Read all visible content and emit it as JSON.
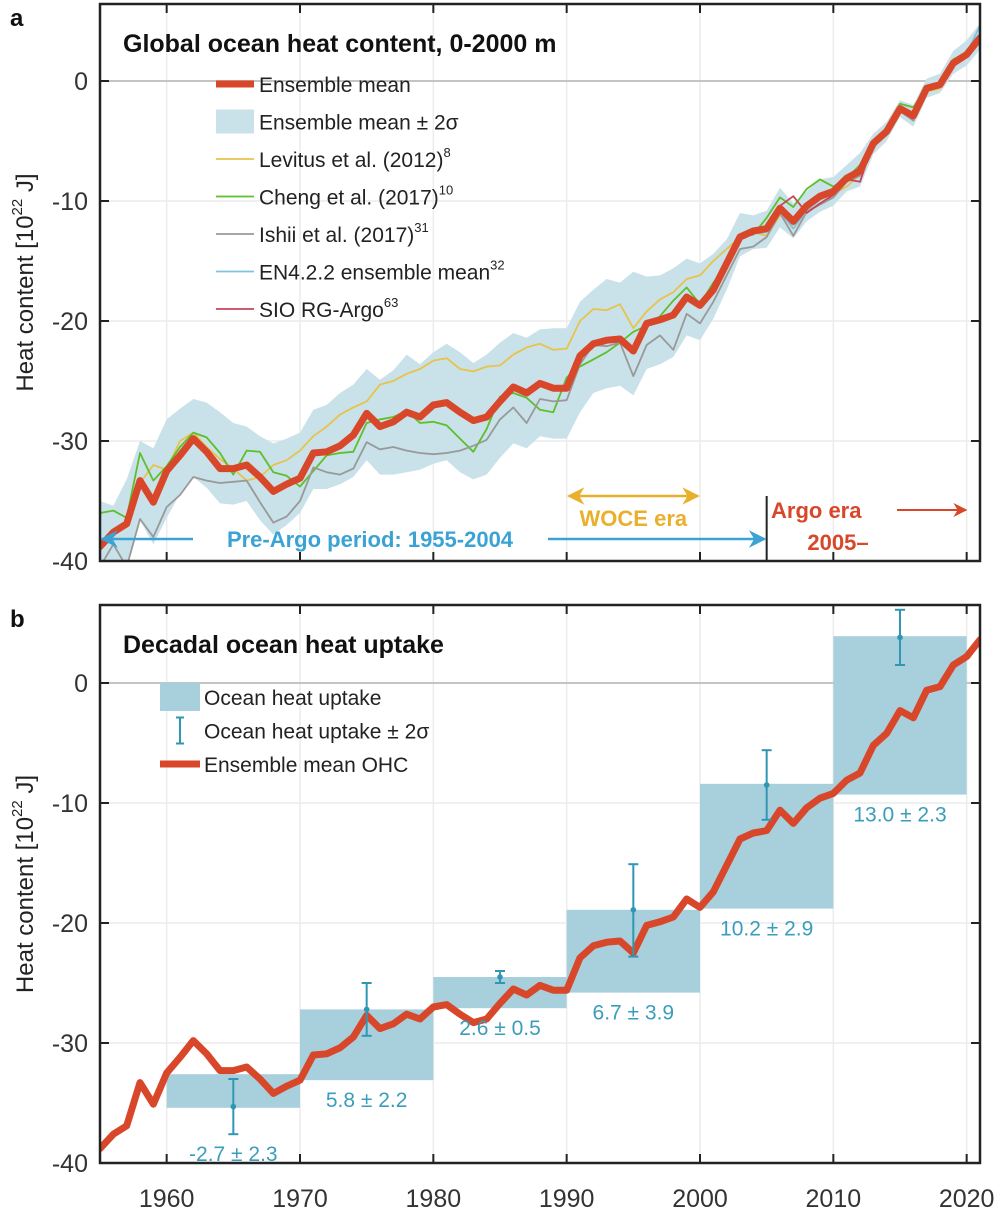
{
  "chart_data": [
    {
      "panel": "a",
      "type": "line",
      "title": "Global ocean heat content, 0-2000 m",
      "xlabel": "",
      "ylabel": "Heat content [10^22 J]",
      "ylabel_parts": {
        "pre": "Heat content [10",
        "sup": "22",
        "post": " J]"
      },
      "xlim": [
        1955,
        2021
      ],
      "ylim": [
        -40,
        6.5
      ],
      "yticks": [
        0,
        -10,
        -20,
        -30,
        -40
      ],
      "ytick_labels": [
        "0",
        "-10",
        "-20",
        "-30",
        "-40"
      ],
      "xticks": [
        1960,
        1970,
        1980,
        1990,
        2000,
        2010,
        2020
      ],
      "grid": true,
      "legend_placement": "top-left",
      "legend": [
        {
          "label": "Ensemble mean",
          "sup": "",
          "kind": "thick-line",
          "color": "#d9472b"
        },
        {
          "label": "Ensemble mean ± 2σ",
          "sup": "",
          "kind": "patch",
          "color": "#c9e1e9"
        },
        {
          "label": "Levitus et al. (2012)",
          "sup": "8",
          "kind": "line",
          "color": "#e8c34a"
        },
        {
          "label": "Cheng et al. (2017)",
          "sup": "10",
          "kind": "line",
          "color": "#5cc02a"
        },
        {
          "label": "Ishii et al. (2017)",
          "sup": "31",
          "kind": "line",
          "color": "#999999"
        },
        {
          "label": "EN4.2.2 ensemble mean",
          "sup": "32",
          "kind": "line",
          "color": "#7ec3e0"
        },
        {
          "label": "SIO RG-Argo",
          "sup": "63",
          "kind": "line",
          "color": "#c8445a"
        }
      ],
      "x": [
        1955,
        1956,
        1957,
        1958,
        1959,
        1960,
        1961,
        1962,
        1963,
        1964,
        1965,
        1966,
        1967,
        1968,
        1969,
        1970,
        1971,
        1972,
        1973,
        1974,
        1975,
        1976,
        1977,
        1978,
        1979,
        1980,
        1981,
        1982,
        1983,
        1984,
        1985,
        1986,
        1987,
        1988,
        1989,
        1990,
        1991,
        1992,
        1993,
        1994,
        1995,
        1996,
        1997,
        1998,
        1999,
        2000,
        2001,
        2002,
        2003,
        2004,
        2005,
        2006,
        2007,
        2008,
        2009,
        2010,
        2011,
        2012,
        2013,
        2014,
        2015,
        2016,
        2017,
        2018,
        2019,
        2020,
        2021
      ],
      "series": [
        {
          "name": "Ensemble mean",
          "color": "#d9472b",
          "values": [
            -38.8,
            -37.6,
            -36.9,
            -33.3,
            -35.1,
            -32.5,
            -31.2,
            -29.8,
            -30.9,
            -32.3,
            -32.3,
            -32.0,
            -33.0,
            -34.2,
            -33.6,
            -33.1,
            -31.0,
            -30.9,
            -30.4,
            -29.5,
            -27.7,
            -28.8,
            -28.4,
            -27.6,
            -28.0,
            -27.0,
            -26.8,
            -27.6,
            -28.3,
            -28.0,
            -26.7,
            -25.5,
            -26.0,
            -25.2,
            -25.6,
            -25.6,
            -22.9,
            -21.9,
            -21.6,
            -21.5,
            -22.5,
            -20.2,
            -19.9,
            -19.5,
            -18.0,
            -18.7,
            -17.4,
            -15.2,
            -13.0,
            -12.5,
            -12.3,
            -10.6,
            -11.7,
            -10.4,
            -9.6,
            -9.2,
            -8.1,
            -7.5,
            -5.2,
            -4.2,
            -2.3,
            -2.9,
            -0.6,
            -0.3,
            1.5,
            2.2,
            3.6
          ]
        },
        {
          "name": "Ensemble mean + 2σ (upper)",
          "values": [
            -35.0,
            -35.4,
            -33.2,
            -30.0,
            -30.6,
            -28.2,
            -27.3,
            -26.5,
            -26.8,
            -27.6,
            -28.5,
            -28.8,
            -29.6,
            -30.2,
            -29.8,
            -29.3,
            -27.4,
            -27.0,
            -26.0,
            -25.3,
            -24.0,
            -24.9,
            -24.1,
            -22.8,
            -23.6,
            -22.6,
            -21.9,
            -22.6,
            -23.5,
            -22.8,
            -21.8,
            -21.0,
            -21.4,
            -20.7,
            -20.6,
            -20.6,
            -18.4,
            -17.4,
            -16.5,
            -16.8,
            -15.9,
            -16.3,
            -16.2,
            -15.6,
            -14.8,
            -15.2,
            -14.4,
            -13.2,
            -11.0,
            -11.2,
            -10.8,
            -8.9,
            -10.2,
            -9.2,
            -8.2,
            -8.0,
            -7.0,
            -6.0,
            -4.4,
            -3.4,
            -1.6,
            -2.0,
            0.2,
            0.6,
            2.5,
            3.4,
            4.8
          ]
        },
        {
          "name": "Ensemble mean - 2σ (lower)",
          "values": [
            -41.0,
            -40.6,
            -40.2,
            -36.6,
            -38.6,
            -36.4,
            -34.4,
            -33.0,
            -33.9,
            -35.2,
            -35.3,
            -35.0,
            -36.6,
            -37.8,
            -37.0,
            -36.0,
            -34.0,
            -34.0,
            -33.6,
            -33.0,
            -31.6,
            -32.8,
            -32.8,
            -32.6,
            -32.4,
            -31.9,
            -31.6,
            -32.6,
            -33.2,
            -32.8,
            -31.4,
            -30.2,
            -30.6,
            -29.6,
            -29.8,
            -29.8,
            -27.6,
            -26.0,
            -25.6,
            -25.4,
            -26.2,
            -24.0,
            -23.6,
            -23.0,
            -21.2,
            -21.6,
            -19.8,
            -17.4,
            -14.6,
            -14.0,
            -13.9,
            -12.2,
            -13.1,
            -11.7,
            -10.9,
            -10.4,
            -9.2,
            -8.8,
            -6.1,
            -5.0,
            -3.0,
            -3.8,
            -1.4,
            -1.0,
            0.6,
            1.3,
            2.6
          ]
        },
        {
          "name": "Levitus et al. (2012)",
          "color": "#e8c34a",
          "values": [
            null,
            null,
            null,
            -33.5,
            -32.0,
            -32.4,
            -30.0,
            -29.3,
            -30.5,
            -31.5,
            -32.3,
            -33.3,
            -33.0,
            -32.0,
            -31.6,
            -30.8,
            -29.6,
            -28.8,
            -27.8,
            -27.2,
            -26.7,
            -25.3,
            -25.0,
            -24.4,
            -24.0,
            -23.3,
            -23.1,
            -24.0,
            -24.2,
            -23.8,
            -23.7,
            -22.8,
            -22.2,
            -21.9,
            -22.4,
            -22.3,
            -20.0,
            -19.0,
            -19.1,
            -18.6,
            -20.6,
            -19.2,
            -18.2,
            -17.6,
            -16.5,
            -16.2,
            -15.0,
            -14.0,
            -13.0,
            -12.6,
            -12.9,
            -11.2,
            -12.0,
            -10.8,
            -9.9,
            -9.4,
            -8.8,
            -7.8,
            -5.4,
            -4.3,
            -2.4,
            -3.0,
            -0.9,
            -0.6,
            1.2,
            2.0,
            null
          ]
        },
        {
          "name": "Cheng et al. (2017)",
          "color": "#5cc02a",
          "values": [
            -36.0,
            -35.8,
            -36.4,
            -31.0,
            -33.3,
            -32.1,
            -30.5,
            -29.3,
            -29.7,
            -31.0,
            -32.8,
            -30.8,
            -30.9,
            -32.6,
            -32.9,
            -33.8,
            -32.5,
            -31.2,
            -31.0,
            -30.9,
            -28.5,
            -28.2,
            -28.0,
            -27.5,
            -28.5,
            -28.4,
            -28.7,
            -29.8,
            -30.9,
            -29.0,
            -26.3,
            -26.0,
            -26.4,
            -27.4,
            -27.6,
            -24.7,
            -23.8,
            -23.2,
            -22.6,
            -21.8,
            -20.9,
            -20.4,
            -19.6,
            -18.3,
            -17.2,
            -18.6,
            -16.8,
            -15.4,
            -13.0,
            -12.8,
            -11.4,
            -9.7,
            -10.5,
            -9.0,
            -8.2,
            -8.8,
            -8.1,
            -7.0,
            -5.0,
            -4.0,
            -1.9,
            -2.2,
            -0.5,
            -0.2,
            1.8,
            2.4,
            3.8
          ]
        },
        {
          "name": "Ishii et al. (2017)",
          "color": "#999999",
          "values": [
            -40.5,
            -38.6,
            -40.5,
            -36.5,
            -38.0,
            -35.5,
            -34.5,
            -33.0,
            -33.3,
            -33.5,
            -33.4,
            -33.3,
            -35.1,
            -36.8,
            -36.3,
            -35.0,
            -32.2,
            -32.6,
            -32.8,
            -32.3,
            -30.1,
            -30.7,
            -30.5,
            -30.8,
            -31.0,
            -31.1,
            -31.0,
            -30.8,
            -30.4,
            -29.9,
            -28.2,
            -27.2,
            -28.5,
            -26.5,
            -26.7,
            -26.6,
            -23.6,
            -22.0,
            -22.1,
            -21.8,
            -24.6,
            -22.0,
            -21.2,
            -22.4,
            -19.4,
            -20.2,
            -18.4,
            -16.2,
            -14.0,
            -13.8,
            -13.0,
            -11.0,
            -12.9,
            -10.9,
            -10.3,
            -9.7,
            -8.4,
            -7.9,
            -5.4,
            -4.5,
            -2.5,
            -3.3,
            -0.8,
            -0.5,
            1.2,
            2.1,
            3.2
          ]
        },
        {
          "name": "EN4.2.2 ensemble mean",
          "color": "#7ec3e0",
          "values": [
            null,
            null,
            null,
            null,
            null,
            null,
            null,
            null,
            null,
            null,
            null,
            null,
            null,
            null,
            null,
            null,
            null,
            null,
            null,
            null,
            null,
            null,
            null,
            null,
            null,
            null,
            null,
            null,
            null,
            null,
            null,
            null,
            null,
            null,
            null,
            null,
            null,
            null,
            null,
            null,
            null,
            null,
            null,
            null,
            null,
            -18.9,
            -17.6,
            -15.4,
            -13.2,
            -12.7,
            -12.6,
            -10.9,
            -12.3,
            -10.8,
            -9.9,
            -9.3,
            -8.3,
            -7.6,
            -5.3,
            -4.3,
            -2.4,
            -3.0,
            -0.7,
            -0.4,
            1.4,
            2.3,
            4.6
          ]
        },
        {
          "name": "SIO RG-Argo",
          "color": "#c8445a",
          "values": [
            null,
            null,
            null,
            null,
            null,
            null,
            null,
            null,
            null,
            null,
            null,
            null,
            null,
            null,
            null,
            null,
            null,
            null,
            null,
            null,
            null,
            null,
            null,
            null,
            null,
            null,
            null,
            null,
            null,
            null,
            null,
            null,
            null,
            null,
            null,
            null,
            null,
            null,
            null,
            null,
            null,
            null,
            null,
            null,
            null,
            null,
            null,
            null,
            null,
            null,
            null,
            -10.4,
            -9.6,
            -11.0,
            -10.2,
            -9.5,
            -8.2,
            -8.4,
            -5.1,
            -4.0,
            -2.2,
            -2.8,
            -0.6,
            -0.2,
            1.6,
            2.3,
            3.4
          ]
        }
      ],
      "annotations": [
        {
          "text": "Pre-Argo period: 1955-2004",
          "color": "#3aa3d4",
          "x_range": [
            1955,
            2005
          ],
          "arrow": "both"
        },
        {
          "text": "WOCE era",
          "color": "#e8b02c",
          "x_range": [
            1990,
            2000
          ],
          "arrow": "both"
        },
        {
          "text": "Argo era",
          "color": "#d9472b",
          "x_range": [
            2005,
            2021
          ],
          "arrow": "right"
        },
        {
          "text": "2005–",
          "color": "#d9472b"
        }
      ]
    },
    {
      "panel": "b",
      "type": "bar",
      "title": "Decadal ocean heat uptake",
      "xlabel": "",
      "ylabel": "Heat content [10^22 J]",
      "ylabel_parts": {
        "pre": "Heat content [10",
        "sup": "22",
        "post": " J]"
      },
      "xlim": [
        1955,
        2021
      ],
      "ylim": [
        -40,
        6.5
      ],
      "yticks": [
        0,
        -10,
        -20,
        -30,
        -40
      ],
      "ytick_labels": [
        "0",
        "-10",
        "-20",
        "-30",
        "-40"
      ],
      "xticks": [
        1960,
        1970,
        1980,
        1990,
        2000,
        2010,
        2020
      ],
      "xtick_labels": [
        "1960",
        "1970",
        "1980",
        "1990",
        "2000",
        "2010",
        "2020"
      ],
      "grid": true,
      "legend_placement": "top-left",
      "legend": [
        {
          "label": "Ocean heat uptake",
          "kind": "patch",
          "color": "#a8cfdc"
        },
        {
          "label": "Ocean heat uptake ± 2σ",
          "kind": "errorbar",
          "color": "#2f96b4"
        },
        {
          "label": "Ensemble mean OHC",
          "kind": "thick-line",
          "color": "#d9472b"
        }
      ],
      "categories": [
        "1960s",
        "1970s",
        "1980s",
        "1990s",
        "2000s",
        "2010s"
      ],
      "bars": [
        {
          "x_start": 1960,
          "x_end": 1970,
          "top": -32.6,
          "bottom": -35.4,
          "label": "-2.7 ± 2.3",
          "err_x": 1965,
          "err_center": -35.3,
          "err_high": -33.0,
          "err_low": -37.6
        },
        {
          "x_start": 1970,
          "x_end": 1980,
          "top": -27.2,
          "bottom": -33.1,
          "label": "5.8 ± 2.2",
          "err_x": 1975,
          "err_center": -27.2,
          "err_high": -25.0,
          "err_low": -29.4
        },
        {
          "x_start": 1980,
          "x_end": 1990,
          "top": -24.5,
          "bottom": -27.1,
          "label": "2.6 ± 0.5",
          "err_x": 1985,
          "err_center": -24.5,
          "err_high": -24.0,
          "err_low": -25.0
        },
        {
          "x_start": 1990,
          "x_end": 2000,
          "top": -18.9,
          "bottom": -25.8,
          "label": "6.7 ± 3.9",
          "err_x": 1995,
          "err_center": -18.9,
          "err_high": -15.1,
          "err_low": -22.8
        },
        {
          "x_start": 2000,
          "x_end": 2010,
          "top": -8.4,
          "bottom": -18.8,
          "label": "10.2 ± 2.9",
          "err_x": 2005,
          "err_center": -8.5,
          "err_high": -5.6,
          "err_low": -11.4
        },
        {
          "x_start": 2010,
          "x_end": 2020,
          "top": 3.9,
          "bottom": -9.3,
          "label": "13.0 ± 2.3",
          "err_x": 2015,
          "err_center": 3.8,
          "err_high": 6.1,
          "err_low": 1.5
        }
      ],
      "uptake_values": [
        -2.7,
        5.8,
        2.6,
        6.7,
        10.2,
        13.0
      ],
      "uptake_2sigma": [
        2.3,
        2.2,
        0.5,
        3.9,
        2.9,
        2.3
      ]
    }
  ],
  "panel_labels": [
    "a",
    "b"
  ]
}
